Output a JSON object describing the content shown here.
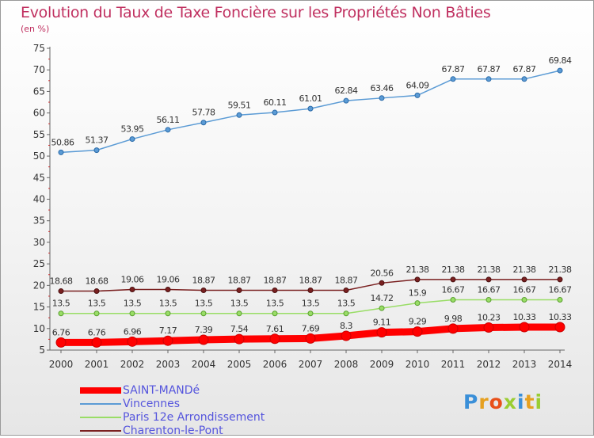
{
  "title": "Evolution du Taux de Taxe Foncière sur les Propriétés Non Bâties",
  "unit_label": "(en %)",
  "logo": {
    "text": "Proxiti",
    "colors": [
      "#3a8fd8",
      "#e6a020",
      "#e8501a",
      "#9acd32",
      "#3a8fd8",
      "#e6a020",
      "#9acd32"
    ]
  },
  "chart_data": {
    "type": "line",
    "title": "Evolution du Taux de Taxe Foncière sur les Propriétés Non Bâties",
    "ylabel": "(en %)",
    "xlabel": "",
    "ylim": [
      5,
      75
    ],
    "yticks": [
      5,
      10,
      15,
      20,
      25,
      30,
      35,
      40,
      45,
      50,
      55,
      60,
      65,
      70,
      75
    ],
    "categories": [
      "2000",
      "2001",
      "2002",
      "2003",
      "2004",
      "2005",
      "2006",
      "2007",
      "2008",
      "2009",
      "2010",
      "2011",
      "2012",
      "2013",
      "2014"
    ],
    "grid": false,
    "legend_position": "bottom",
    "series": [
      {
        "name": "SAINT-MANDé",
        "color": "#ff0000",
        "values": [
          6.76,
          6.76,
          6.96,
          7.17,
          7.39,
          7.54,
          7.61,
          7.69,
          8.3,
          9.11,
          9.29,
          9.98,
          10.23,
          10.33,
          10.33
        ],
        "labels": [
          "6.76",
          "6.76",
          "6.96",
          "7.17",
          "7.39",
          "7.54",
          "7.61",
          "7.69",
          "8.3",
          "9.11",
          "9.29",
          "9.98",
          "10.23",
          "10.33",
          "10.33"
        ]
      },
      {
        "name": "Vincennes",
        "color": "#5b9bd5",
        "values": [
          50.86,
          51.37,
          53.95,
          56.11,
          57.78,
          59.51,
          60.11,
          61.01,
          62.84,
          63.46,
          64.09,
          67.87,
          67.87,
          67.87,
          69.84
        ],
        "labels": [
          "50.86",
          "51.37",
          "53.95",
          "56.11",
          "57.78",
          "59.51",
          "60.11",
          "61.01",
          "62.84",
          "63.46",
          "64.09",
          "67.87",
          "67.87",
          "67.87",
          "69.84"
        ]
      },
      {
        "name": "Paris 12e  Arrondissement",
        "color": "#99dd66",
        "values": [
          13.5,
          13.5,
          13.5,
          13.5,
          13.5,
          13.5,
          13.5,
          13.5,
          13.5,
          14.72,
          15.9,
          16.67,
          16.67,
          16.67,
          16.67
        ],
        "labels": [
          "13.5",
          "13.5",
          "13.5",
          "13.5",
          "13.5",
          "13.5",
          "13.5",
          "13.5",
          "13.5",
          "14.72",
          "15.9",
          "16.67",
          "16.67",
          "16.67",
          "16.67"
        ]
      },
      {
        "name": "Charenton-le-Pont",
        "color": "#7a2020",
        "values": [
          18.68,
          18.68,
          19.06,
          19.06,
          18.87,
          18.87,
          18.87,
          18.87,
          18.87,
          20.56,
          21.38,
          21.38,
          21.38,
          21.38,
          21.38
        ],
        "labels": [
          "18.68",
          "18.68",
          "19.06",
          "19.06",
          "18.87",
          "18.87",
          "18.87",
          "18.87",
          "18.87",
          "20.56",
          "21.38",
          "21.38",
          "21.38",
          "21.38",
          "21.38"
        ]
      }
    ]
  }
}
